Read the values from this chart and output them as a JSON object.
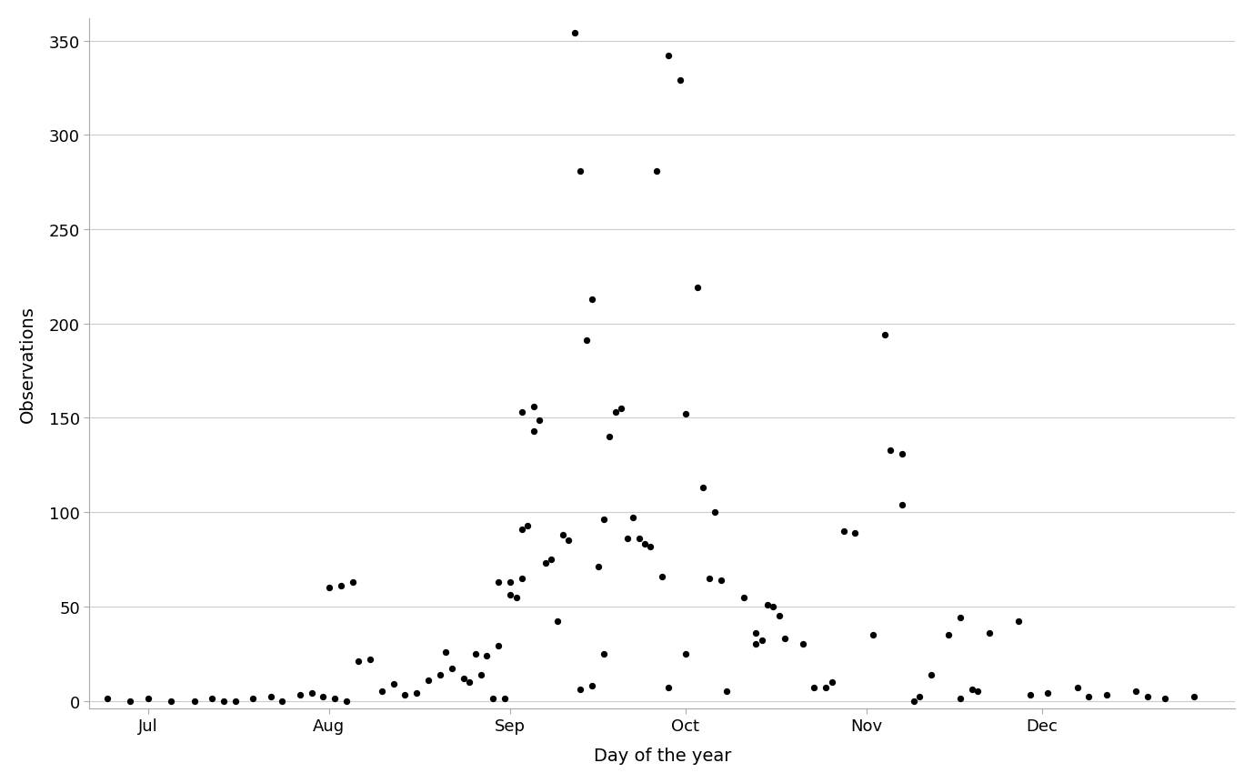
{
  "xlabel": "Day of the year",
  "ylabel": "Observations",
  "background_color": "#ffffff",
  "grid_color": "#cccccc",
  "point_color": "#000000",
  "point_size": 18,
  "xlim": [
    172,
    368
  ],
  "ylim": [
    -4,
    362
  ],
  "yticks": [
    0,
    50,
    100,
    150,
    200,
    250,
    300,
    350
  ],
  "xtick_labels": [
    "Jul",
    "Aug",
    "Sep",
    "Oct",
    "Nov",
    "Dec"
  ],
  "xtick_days": [
    182,
    213,
    244,
    274,
    305,
    335
  ],
  "points_x": [
    175,
    179,
    182,
    186,
    190,
    193,
    195,
    197,
    200,
    203,
    205,
    208,
    210,
    212,
    214,
    216,
    218,
    220,
    222,
    213,
    215,
    217,
    224,
    226,
    228,
    230,
    232,
    234,
    236,
    237,
    239,
    240,
    242,
    233,
    238,
    241,
    243,
    244,
    245,
    246,
    247,
    248,
    249,
    242,
    244,
    246,
    246,
    248,
    250,
    251,
    252,
    253,
    254,
    255,
    256,
    257,
    258,
    259,
    260,
    261,
    256,
    258,
    260,
    262,
    263,
    264,
    265,
    266,
    267,
    268,
    270,
    269,
    271,
    273,
    274,
    271,
    274,
    276,
    277,
    278,
    279,
    280,
    281,
    284,
    286,
    287,
    286,
    288,
    289,
    290,
    291,
    294,
    296,
    298,
    299,
    301,
    303,
    306,
    308,
    309,
    311,
    311,
    313,
    314,
    316,
    319,
    321,
    321,
    323,
    324,
    326,
    331,
    333,
    336,
    341,
    343,
    346,
    351,
    353,
    356,
    361
  ],
  "points_y": [
    1,
    0,
    1,
    0,
    0,
    1,
    0,
    0,
    1,
    2,
    0,
    3,
    4,
    2,
    1,
    0,
    21,
    22,
    5,
    60,
    61,
    63,
    9,
    3,
    4,
    11,
    14,
    17,
    12,
    10,
    14,
    24,
    29,
    26,
    25,
    1,
    1,
    56,
    55,
    91,
    93,
    143,
    149,
    63,
    63,
    65,
    153,
    156,
    73,
    75,
    42,
    88,
    85,
    354,
    281,
    191,
    213,
    71,
    96,
    140,
    6,
    8,
    25,
    153,
    155,
    86,
    97,
    86,
    83,
    82,
    66,
    281,
    342,
    329,
    152,
    7,
    25,
    219,
    113,
    65,
    100,
    64,
    5,
    55,
    30,
    32,
    36,
    51,
    50,
    45,
    33,
    30,
    7,
    7,
    10,
    90,
    89,
    35,
    194,
    133,
    131,
    104,
    0,
    2,
    14,
    35,
    1,
    44,
    6,
    5,
    36,
    42,
    3,
    4,
    7,
    2,
    3,
    5,
    2,
    1,
    2
  ]
}
